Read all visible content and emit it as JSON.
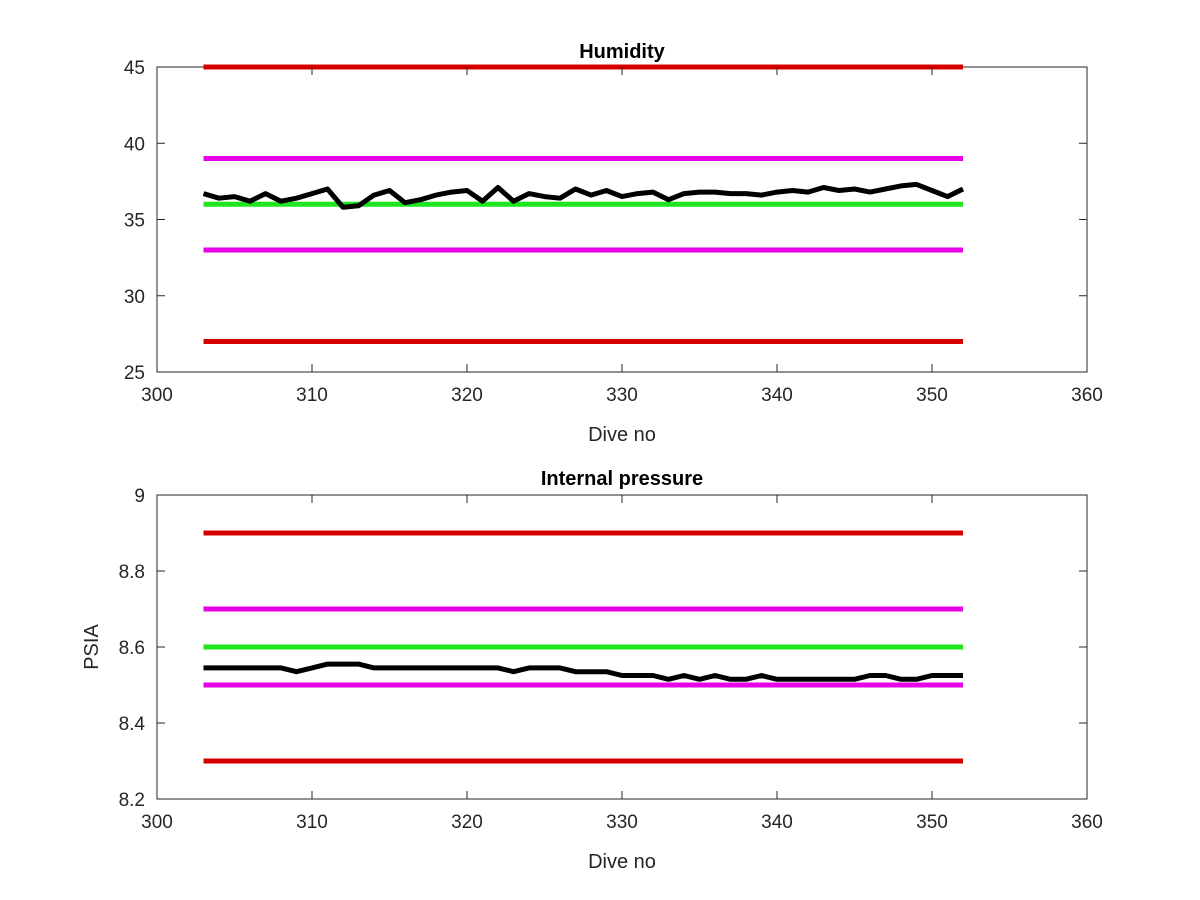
{
  "chart_data": [
    {
      "type": "line",
      "title": "Humidity",
      "xlabel": "Dive no",
      "ylabel": "",
      "xlim": [
        300,
        360
      ],
      "ylim": [
        25,
        45
      ],
      "xticks": [
        300,
        310,
        320,
        330,
        340,
        350,
        360
      ],
      "yticks": [
        25,
        30,
        35,
        40,
        45
      ],
      "grid": false,
      "thresholds": [
        {
          "y": 45,
          "x": [
            303,
            352
          ],
          "color": "#d40000"
        },
        {
          "y": 39,
          "x": [
            303,
            352
          ],
          "color": "#e600e6"
        },
        {
          "y": 36,
          "x": [
            303,
            352
          ],
          "color": "#1ee61e"
        },
        {
          "y": 33,
          "x": [
            303,
            352
          ],
          "color": "#e600e6"
        },
        {
          "y": 27,
          "x": [
            303,
            352
          ],
          "color": "#d40000"
        }
      ],
      "series": [
        {
          "color": "#000000",
          "x": [
            303,
            304,
            305,
            306,
            307,
            308,
            309,
            310,
            311,
            312,
            313,
            314,
            315,
            316,
            317,
            318,
            319,
            320,
            321,
            322,
            323,
            324,
            325,
            326,
            327,
            328,
            329,
            330,
            331,
            332,
            333,
            334,
            335,
            336,
            337,
            338,
            339,
            340,
            341,
            342,
            343,
            344,
            345,
            346,
            347,
            348,
            349,
            350,
            351,
            352
          ],
          "values": [
            36.7,
            36.4,
            36.5,
            36.2,
            36.7,
            36.2,
            36.4,
            36.7,
            37.0,
            35.8,
            35.9,
            36.6,
            36.9,
            36.1,
            36.3,
            36.6,
            36.8,
            36.9,
            36.2,
            37.1,
            36.2,
            36.7,
            36.5,
            36.4,
            37.0,
            36.6,
            36.9,
            36.5,
            36.7,
            36.8,
            36.3,
            36.7,
            36.8,
            36.8,
            36.7,
            36.7,
            36.6,
            36.8,
            36.9,
            36.8,
            37.1,
            36.9,
            37.0,
            36.8,
            37.0,
            37.2,
            37.3,
            36.9,
            36.5,
            37.0
          ]
        }
      ]
    },
    {
      "type": "line",
      "title": "Internal pressure",
      "xlabel": "Dive no",
      "ylabel": "PSIA",
      "xlim": [
        300,
        360
      ],
      "ylim": [
        8.2,
        9
      ],
      "xticks": [
        300,
        310,
        320,
        330,
        340,
        350,
        360
      ],
      "yticks": [
        "8.2",
        "8.4",
        "8.6",
        "8.8",
        "9"
      ],
      "grid": false,
      "thresholds": [
        {
          "y": 8.9,
          "x": [
            303,
            352
          ],
          "color": "#d40000"
        },
        {
          "y": 8.7,
          "x": [
            303,
            352
          ],
          "color": "#e600e6"
        },
        {
          "y": 8.6,
          "x": [
            303,
            352
          ],
          "color": "#1ee61e"
        },
        {
          "y": 8.5,
          "x": [
            303,
            352
          ],
          "color": "#e600e6"
        },
        {
          "y": 8.3,
          "x": [
            303,
            352
          ],
          "color": "#d40000"
        }
      ],
      "series": [
        {
          "color": "#000000",
          "x": [
            303,
            304,
            305,
            306,
            307,
            308,
            309,
            310,
            311,
            312,
            313,
            314,
            315,
            316,
            317,
            318,
            319,
            320,
            321,
            322,
            323,
            324,
            325,
            326,
            327,
            328,
            329,
            330,
            331,
            332,
            333,
            334,
            335,
            336,
            337,
            338,
            339,
            340,
            341,
            342,
            343,
            344,
            345,
            346,
            347,
            348,
            349,
            350,
            351,
            352
          ],
          "values": [
            8.545,
            8.545,
            8.545,
            8.545,
            8.545,
            8.545,
            8.535,
            8.545,
            8.555,
            8.555,
            8.555,
            8.545,
            8.545,
            8.545,
            8.545,
            8.545,
            8.545,
            8.545,
            8.545,
            8.545,
            8.535,
            8.545,
            8.545,
            8.545,
            8.535,
            8.535,
            8.535,
            8.525,
            8.525,
            8.525,
            8.515,
            8.525,
            8.515,
            8.525,
            8.515,
            8.515,
            8.525,
            8.515,
            8.515,
            8.515,
            8.515,
            8.515,
            8.515,
            8.525,
            8.525,
            8.515,
            8.515,
            8.525,
            8.525,
            8.525
          ]
        }
      ]
    }
  ]
}
